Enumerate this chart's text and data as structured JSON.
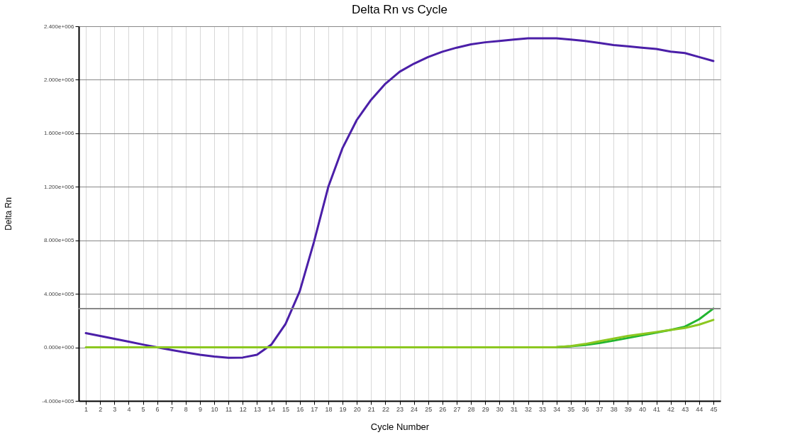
{
  "chart_data": {
    "type": "line",
    "title": "Delta Rn vs Cycle",
    "xlabel": "Cycle Number",
    "ylabel": "Delta Rn",
    "x": [
      1,
      2,
      3,
      4,
      5,
      6,
      7,
      8,
      9,
      10,
      11,
      12,
      13,
      14,
      15,
      16,
      17,
      18,
      19,
      20,
      21,
      22,
      23,
      24,
      25,
      26,
      27,
      28,
      29,
      30,
      31,
      32,
      33,
      34,
      35,
      36,
      37,
      38,
      39,
      40,
      41,
      42,
      43,
      44,
      45
    ],
    "series": [
      {
        "color": "#4b1fa8",
        "values": [
          106000,
          85000,
          64000,
          43000,
          21000,
          0,
          -20000,
          -38000,
          -55000,
          -68000,
          -78000,
          -76000,
          -55000,
          20000,
          175000,
          420000,
          790000,
          1200000,
          1490000,
          1700000,
          1850000,
          1970000,
          2060000,
          2120000,
          2170000,
          2210000,
          2240000,
          2265000,
          2280000,
          2290000,
          2300000,
          2310000,
          2310000,
          2310000,
          2300000,
          2290000,
          2275000,
          2260000,
          2250000,
          2240000,
          2230000,
          2210000,
          2200000,
          2170000,
          2140000
        ]
      },
      {
        "color": "#22b530",
        "values": [
          null,
          null,
          null,
          null,
          null,
          null,
          null,
          null,
          null,
          null,
          null,
          null,
          null,
          null,
          null,
          null,
          null,
          null,
          null,
          null,
          null,
          null,
          null,
          null,
          null,
          null,
          null,
          null,
          null,
          null,
          null,
          null,
          null,
          2000,
          8000,
          18000,
          32000,
          50000,
          70000,
          90000,
          110000,
          130000,
          155000,
          210000,
          290000
        ]
      },
      {
        "color": "#8cc820",
        "values": [
          0,
          0,
          0,
          0,
          0,
          0,
          0,
          0,
          0,
          0,
          0,
          0,
          0,
          0,
          0,
          0,
          0,
          0,
          0,
          0,
          0,
          0,
          0,
          0,
          0,
          0,
          0,
          0,
          0,
          0,
          0,
          0,
          0,
          2000,
          10000,
          25000,
          45000,
          65000,
          85000,
          100000,
          115000,
          130000,
          145000,
          170000,
          205000
        ]
      }
    ],
    "xlim": [
      0.5,
      45.5
    ],
    "xticks": [
      1,
      2,
      3,
      4,
      5,
      6,
      7,
      8,
      9,
      10,
      11,
      12,
      13,
      14,
      15,
      16,
      17,
      18,
      19,
      20,
      21,
      22,
      23,
      24,
      25,
      26,
      27,
      28,
      29,
      30,
      31,
      32,
      33,
      34,
      35,
      36,
      37,
      38,
      39,
      40,
      41,
      42,
      43,
      44,
      45
    ],
    "ylim": [
      -400000,
      2400000
    ],
    "yticks": [
      {
        "value": -400000,
        "label": "-4.000e+005"
      },
      {
        "value": 0,
        "label": "0.000e+000"
      },
      {
        "value": 400000,
        "label": "4.000e+005"
      },
      {
        "value": 800000,
        "label": "8.000e+005"
      },
      {
        "value": 1200000,
        "label": "1.200e+006"
      },
      {
        "value": 1600000,
        "label": "1.600e+006"
      },
      {
        "value": 2000000,
        "label": "2.000e+006"
      },
      {
        "value": 2400000,
        "label": "2.400e+006"
      }
    ],
    "ref_lines": [
      {
        "axis": "y",
        "value": 290000,
        "label": null,
        "color": "#888888"
      }
    ],
    "grid": true,
    "legend": false,
    "marker": "none",
    "line_style": "solid"
  }
}
